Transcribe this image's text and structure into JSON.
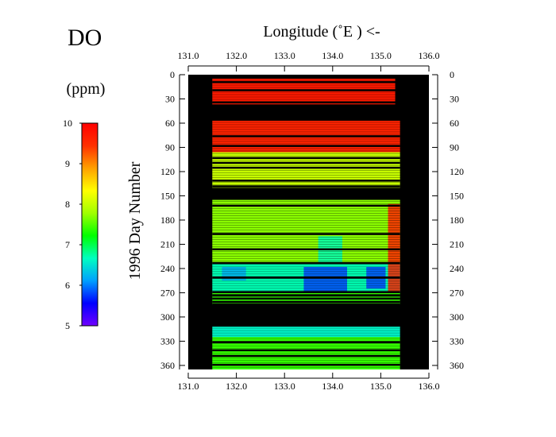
{
  "chart_data": {
    "type": "heatmap",
    "title": "DO",
    "xlabel": "Longitude (˚E ) <-",
    "ylabel": "1996  Day  Number",
    "colorbar": {
      "label": "(ppm)",
      "min": 5,
      "max": 10,
      "ticks": [
        "10",
        "9",
        "8",
        "7",
        "6",
        "5"
      ],
      "colormap": [
        "#7000ff",
        "#0000ff",
        "#00a0ff",
        "#00ffc0",
        "#00ff00",
        "#a0ff00",
        "#ffff00",
        "#ffa000",
        "#ff3000",
        "#ff0000"
      ]
    },
    "x_ticks": [
      "131.0",
      "132.0",
      "133.0",
      "134.0",
      "135.0",
      "136.0"
    ],
    "x_tick_values": [
      131,
      132,
      133,
      134,
      135,
      136
    ],
    "y_ticks": [
      "0",
      "30",
      "60",
      "90",
      "120",
      "150",
      "180",
      "210",
      "240",
      "270",
      "300",
      "330",
      "360"
    ],
    "y_tick_values": [
      0,
      30,
      60,
      90,
      120,
      150,
      180,
      210,
      240,
      270,
      300,
      330,
      360
    ],
    "xlim": [
      131,
      136
    ],
    "ylim": [
      0,
      365
    ],
    "background_color": "#000000",
    "blocks": [
      {
        "day_start": 5,
        "day_end": 37,
        "lon_start": 131.5,
        "lon_end": 135.3,
        "value": 9.7
      },
      {
        "day_start": 57,
        "day_end": 96,
        "lon_start": 131.5,
        "lon_end": 135.4,
        "value": 9.6
      },
      {
        "day_start": 96,
        "day_end": 140,
        "lon_start": 131.5,
        "lon_end": 135.4,
        "value": 8.0
      },
      {
        "day_start": 155,
        "day_end": 233,
        "lon_start": 131.5,
        "lon_end": 135.4,
        "value": 7.7
      },
      {
        "day_start": 233,
        "day_end": 270,
        "lon_start": 131.5,
        "lon_end": 135.4,
        "value": 6.7
      },
      {
        "day_start": 270,
        "day_end": 285,
        "lon_start": 131.5,
        "lon_end": 135.4,
        "value": 7.4
      },
      {
        "day_start": 312,
        "day_end": 325,
        "lon_start": 131.5,
        "lon_end": 135.4,
        "value": 6.6
      },
      {
        "day_start": 325,
        "day_end": 365,
        "lon_start": 131.5,
        "lon_end": 135.4,
        "value": 7.4
      }
    ],
    "anomalies": [
      {
        "day_start": 200,
        "day_end": 235,
        "lon_start": 133.7,
        "lon_end": 134.2,
        "value": 6.7
      },
      {
        "day_start": 238,
        "day_end": 270,
        "lon_start": 133.4,
        "lon_end": 134.3,
        "value": 5.8
      },
      {
        "day_start": 238,
        "day_end": 265,
        "lon_start": 134.7,
        "lon_end": 135.1,
        "value": 5.8
      },
      {
        "day_start": 238,
        "day_end": 255,
        "lon_start": 131.7,
        "lon_end": 132.2,
        "value": 6.2
      },
      {
        "day_start": 160,
        "day_end": 270,
        "lon_start": 135.15,
        "lon_end": 135.4,
        "value": 9.6
      }
    ],
    "gap_rows": [
      8,
      18,
      33,
      37,
      75,
      87,
      102,
      108,
      114,
      130,
      137,
      161,
      196,
      215,
      232,
      250,
      268,
      272,
      276,
      280,
      283,
      330,
      340,
      347,
      358
    ]
  }
}
